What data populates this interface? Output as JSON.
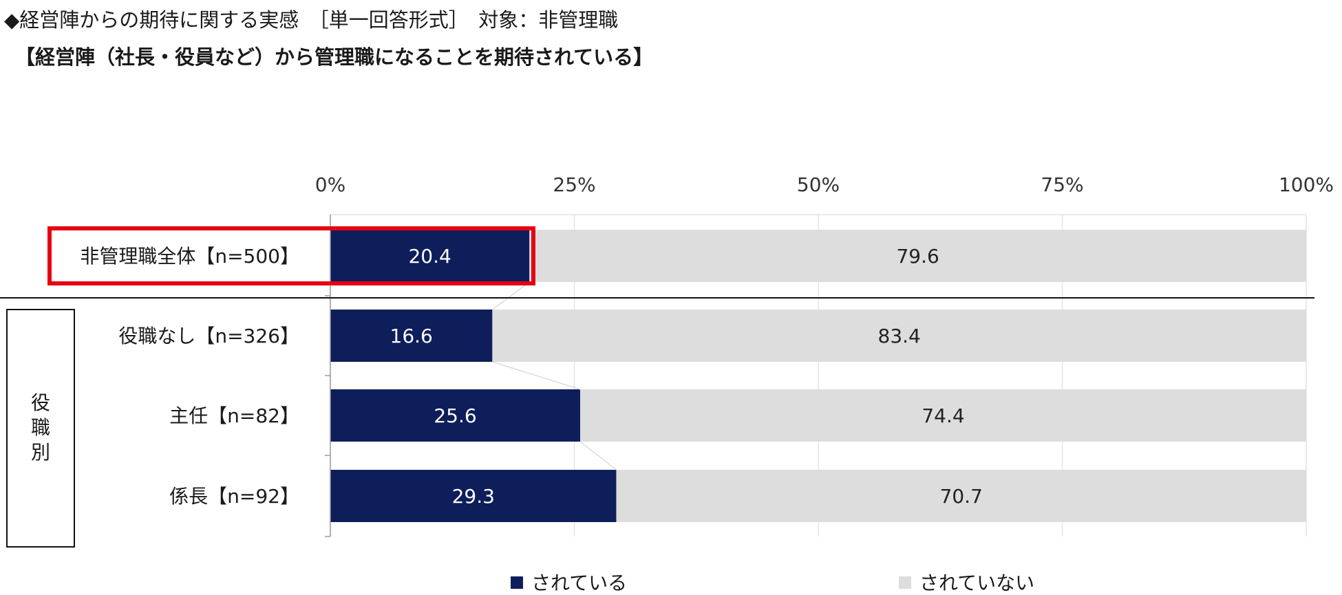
{
  "header": {
    "title": "◆経営陣からの期待に関する実感　［単一回答形式］　対象：非管理職",
    "subtitle": "【経営陣（社長・役員など）から管理職になることを期待されている】"
  },
  "chart_data": {
    "type": "bar",
    "orientation": "horizontal",
    "stacked": true,
    "title": "経営陣（社長・役員など）から管理職になることを期待されている",
    "xlim": [
      0,
      100
    ],
    "ticks": [
      "0%",
      "25%",
      "50%",
      "75%",
      "100%"
    ],
    "categories": [
      "非管理職全体【n=500】",
      "役職なし【n=326】",
      "主任【n=82】",
      "係長【n=92】"
    ],
    "group_label": "役職別",
    "series": [
      {
        "name": "されている",
        "color": "#0e1e5b",
        "values": [
          20.4,
          16.6,
          25.6,
          29.3
        ]
      },
      {
        "name": "されていない",
        "color": "#dddddd",
        "values": [
          79.6,
          83.4,
          74.4,
          70.7
        ]
      }
    ],
    "highlight": {
      "category_index": 0,
      "color": "#e60012"
    }
  }
}
